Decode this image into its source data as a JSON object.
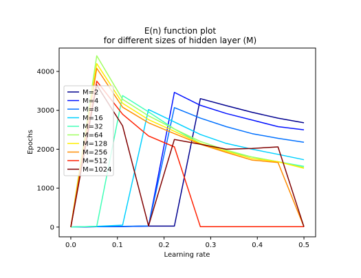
{
  "chart_data": {
    "type": "line",
    "title_line1": "E(n) function plot",
    "title_line2": "for different sizes of hidden layer (M)",
    "xlabel": "Learning rate",
    "ylabel": "Epochs",
    "xlim": [
      -0.025,
      0.525
    ],
    "ylim": [
      -250,
      4600
    ],
    "xticks": [
      0.0,
      0.1,
      0.2,
      0.3,
      0.4,
      0.5
    ],
    "xtick_labels": [
      "0.0",
      "0.1",
      "0.2",
      "0.3",
      "0.4",
      "0.5"
    ],
    "yticks": [
      0,
      1000,
      2000,
      3000,
      4000
    ],
    "ytick_labels": [
      "0",
      "1000",
      "2000",
      "3000",
      "4000"
    ],
    "legend_position": "middle-left",
    "x": [
      0.0,
      0.0556,
      0.1111,
      0.1667,
      0.2222,
      0.2778,
      0.3333,
      0.3889,
      0.4444,
      0.5
    ],
    "series": [
      {
        "name": "M=2",
        "color": "#00008f",
        "values": [
          0,
          10,
          15,
          25,
          25,
          3300,
          3120,
          2950,
          2800,
          2680
        ]
      },
      {
        "name": "M=4",
        "color": "#0010ff",
        "values": [
          0,
          10,
          15,
          25,
          3460,
          3130,
          2920,
          2750,
          2580,
          2500
        ]
      },
      {
        "name": "M=8",
        "color": "#0070ff",
        "values": [
          0,
          15,
          20,
          30,
          3070,
          2800,
          2580,
          2400,
          2280,
          2180
        ]
      },
      {
        "name": "M=16",
        "color": "#00d0ff",
        "values": [
          0,
          20,
          50,
          3020,
          2700,
          2380,
          2150,
          2000,
          1870,
          1730
        ]
      },
      {
        "name": "M=32",
        "color": "#40ffb7",
        "values": [
          0,
          20,
          3380,
          2960,
          2520,
          2150,
          1950,
          1800,
          1680,
          1560
        ]
      },
      {
        "name": "M=64",
        "color": "#a0ff60",
        "values": [
          0,
          4400,
          3280,
          2860,
          2520,
          2200,
          1980,
          1800,
          1680,
          1530
        ]
      },
      {
        "name": "M=128",
        "color": "#ffed00",
        "values": [
          0,
          4200,
          3180,
          2760,
          2460,
          2150,
          1950,
          1760,
          1680,
          1510
        ]
      },
      {
        "name": "M=256",
        "color": "#ff8c00",
        "values": [
          0,
          4080,
          3080,
          2680,
          2400,
          2130,
          1920,
          1720,
          1660,
          10
        ]
      },
      {
        "name": "M=512",
        "color": "#ff2000",
        "values": [
          0,
          3750,
          2900,
          2340,
          2060,
          10,
          10,
          10,
          10,
          10
        ]
      },
      {
        "name": "M=1024",
        "color": "#800000",
        "values": [
          0,
          3650,
          2600,
          30,
          2250,
          2130,
          2000,
          2020,
          2060,
          10
        ]
      }
    ]
  }
}
